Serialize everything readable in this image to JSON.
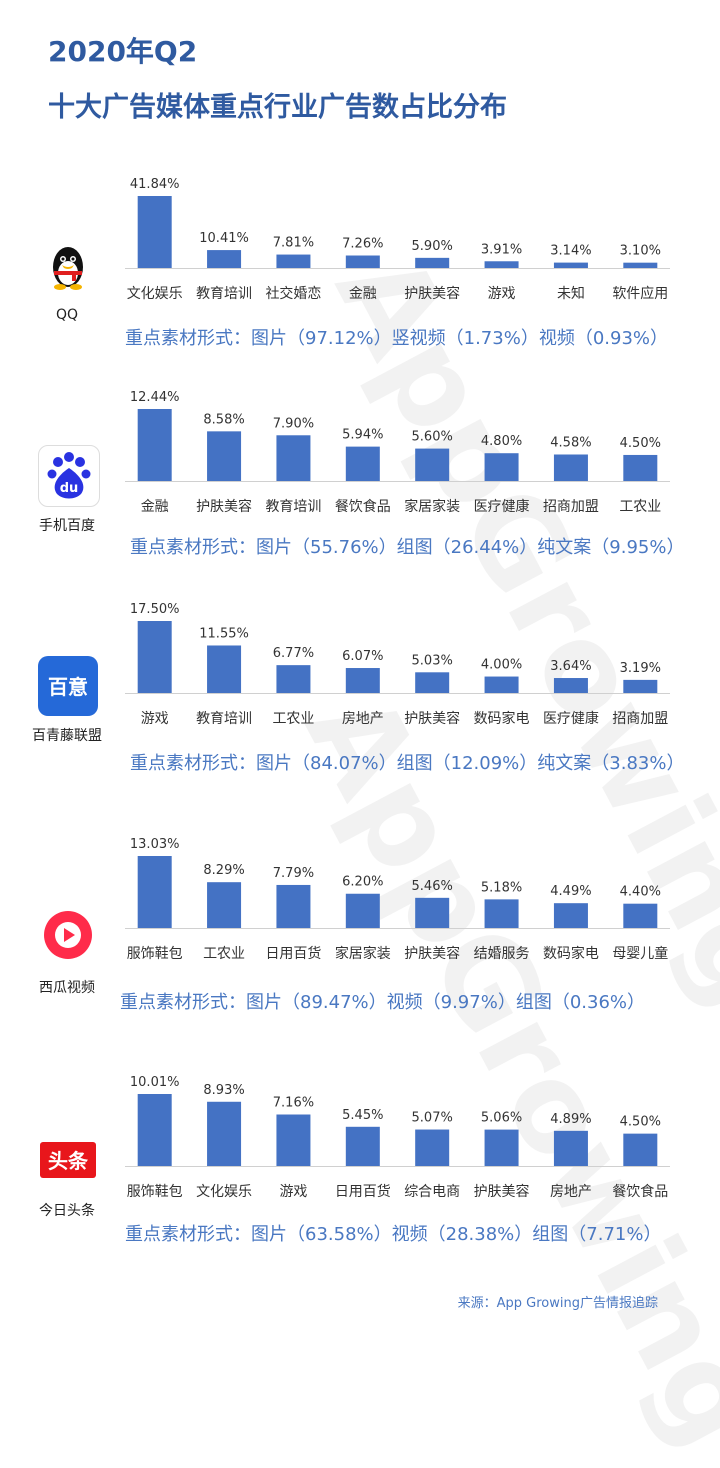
{
  "header": {
    "year_title": "2020年Q2",
    "main_title": "十大广告媒体重点行业广告数占比分布"
  },
  "colors": {
    "bar": "#4472c4",
    "title": "#2f5aa0",
    "note": "#4a78c2"
  },
  "watermark": "AppGrowing",
  "chart_data": [
    {
      "type": "bar",
      "platform": "QQ",
      "logo_icon": "qq-penguin-icon",
      "categories": [
        "文化娱乐",
        "教育培训",
        "社交婚恋",
        "金融",
        "护肤美容",
        "游戏",
        "未知",
        "软件应用"
      ],
      "values": [
        41.84,
        10.41,
        7.81,
        7.26,
        5.9,
        3.91,
        3.14,
        3.1
      ],
      "labels": [
        "41.84%",
        "10.41%",
        "7.81%",
        "7.26%",
        "5.90%",
        "3.91%",
        "3.14%",
        "3.10%"
      ],
      "note": "重点素材形式：图片（97.12%）竖视频（1.73%）视频（0.93%）"
    },
    {
      "type": "bar",
      "platform": "手机百度",
      "logo_icon": "baidu-paw-icon",
      "categories": [
        "金融",
        "护肤美容",
        "教育培训",
        "餐饮食品",
        "家居家装",
        "医疗健康",
        "招商加盟",
        "工农业"
      ],
      "values": [
        12.44,
        8.58,
        7.9,
        5.94,
        5.6,
        4.8,
        4.58,
        4.5
      ],
      "labels": [
        "12.44%",
        "8.58%",
        "7.90%",
        "5.94%",
        "5.60%",
        "4.80%",
        "4.58%",
        "4.50%"
      ],
      "note": "重点素材形式：图片（55.76%）组图（26.44%）纯文案（9.95%）"
    },
    {
      "type": "bar",
      "platform": "百青藤联盟",
      "logo_icon": "baiqingteng-icon",
      "logo_text": "百意",
      "categories": [
        "游戏",
        "教育培训",
        "工农业",
        "房地产",
        "护肤美容",
        "数码家电",
        "医疗健康",
        "招商加盟"
      ],
      "values": [
        17.5,
        11.55,
        6.77,
        6.07,
        5.03,
        4.0,
        3.64,
        3.19
      ],
      "labels": [
        "17.50%",
        "11.55%",
        "6.77%",
        "6.07%",
        "5.03%",
        "4.00%",
        "3.64%",
        "3.19%"
      ],
      "note": "重点素材形式：图片（84.07%）组图（12.09%）纯文案（3.83%）"
    },
    {
      "type": "bar",
      "platform": "西瓜视频",
      "logo_icon": "xigua-play-icon",
      "categories": [
        "服饰鞋包",
        "工农业",
        "日用百货",
        "家居家装",
        "护肤美容",
        "结婚服务",
        "数码家电",
        "母婴儿童"
      ],
      "values": [
        13.03,
        8.29,
        7.79,
        6.2,
        5.46,
        5.18,
        4.49,
        4.4
      ],
      "labels": [
        "13.03%",
        "8.29%",
        "7.79%",
        "6.20%",
        "5.46%",
        "5.18%",
        "4.49%",
        "4.40%"
      ],
      "note": "重点素材形式：图片（89.47%）视频（9.97%）组图（0.36%）"
    },
    {
      "type": "bar",
      "platform": "今日头条",
      "logo_icon": "toutiao-icon",
      "logo_text": "头条",
      "categories": [
        "服饰鞋包",
        "文化娱乐",
        "游戏",
        "日用百货",
        "综合电商",
        "护肤美容",
        "房地产",
        "餐饮食品"
      ],
      "values": [
        10.01,
        8.93,
        7.16,
        5.45,
        5.07,
        5.06,
        4.89,
        4.5
      ],
      "labels": [
        "10.01%",
        "8.93%",
        "7.16%",
        "5.45%",
        "5.07%",
        "5.06%",
        "4.89%",
        "4.50%"
      ],
      "note": "重点素材形式：图片（63.58%）视频（28.38%）组图（7.71%）"
    }
  ],
  "source": "来源：App Growing广告情报追踪"
}
